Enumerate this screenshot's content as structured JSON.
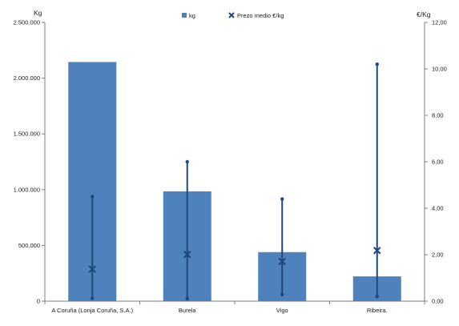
{
  "chart_data": {
    "type": "bar",
    "categories": [
      "A Coruña (Lonja Coruña, S.A.)",
      "Burela",
      "Vigo",
      "Ribeira."
    ],
    "series": [
      {
        "name": "kg",
        "axis": "left",
        "values": [
          2145000,
          985000,
          440000,
          222000
        ]
      },
      {
        "name": "Prezo medio €/kg",
        "axis": "right",
        "marker": "x",
        "values": [
          1.38,
          2.01,
          1.71,
          2.18
        ],
        "min": [
          0.12,
          0.1,
          0.28,
          0.2
        ],
        "max": [
          4.5,
          6.0,
          4.4,
          10.2
        ]
      }
    ],
    "y_left": {
      "label": "Kg",
      "ylim": [
        0,
        2500000
      ],
      "ticks": [
        "0",
        "500.000",
        "1.000.000",
        "1.500.000",
        "2.000.000",
        "2.500.000"
      ],
      "tick_values": [
        0,
        500000,
        1000000,
        1500000,
        2000000,
        2500000
      ]
    },
    "y_right": {
      "label": "€/Kg",
      "ylim": [
        0,
        12
      ],
      "ticks": [
        "0,00",
        "2,00",
        "4,00",
        "6,00",
        "8,00",
        "10,00",
        "12,00"
      ],
      "tick_values": [
        0,
        2,
        4,
        6,
        8,
        10,
        12
      ]
    },
    "legend_position": "top-center",
    "grid": false,
    "colors": {
      "bar": "#4f81bd",
      "price": "#1f497d",
      "axis": "#7f7f7f"
    }
  }
}
